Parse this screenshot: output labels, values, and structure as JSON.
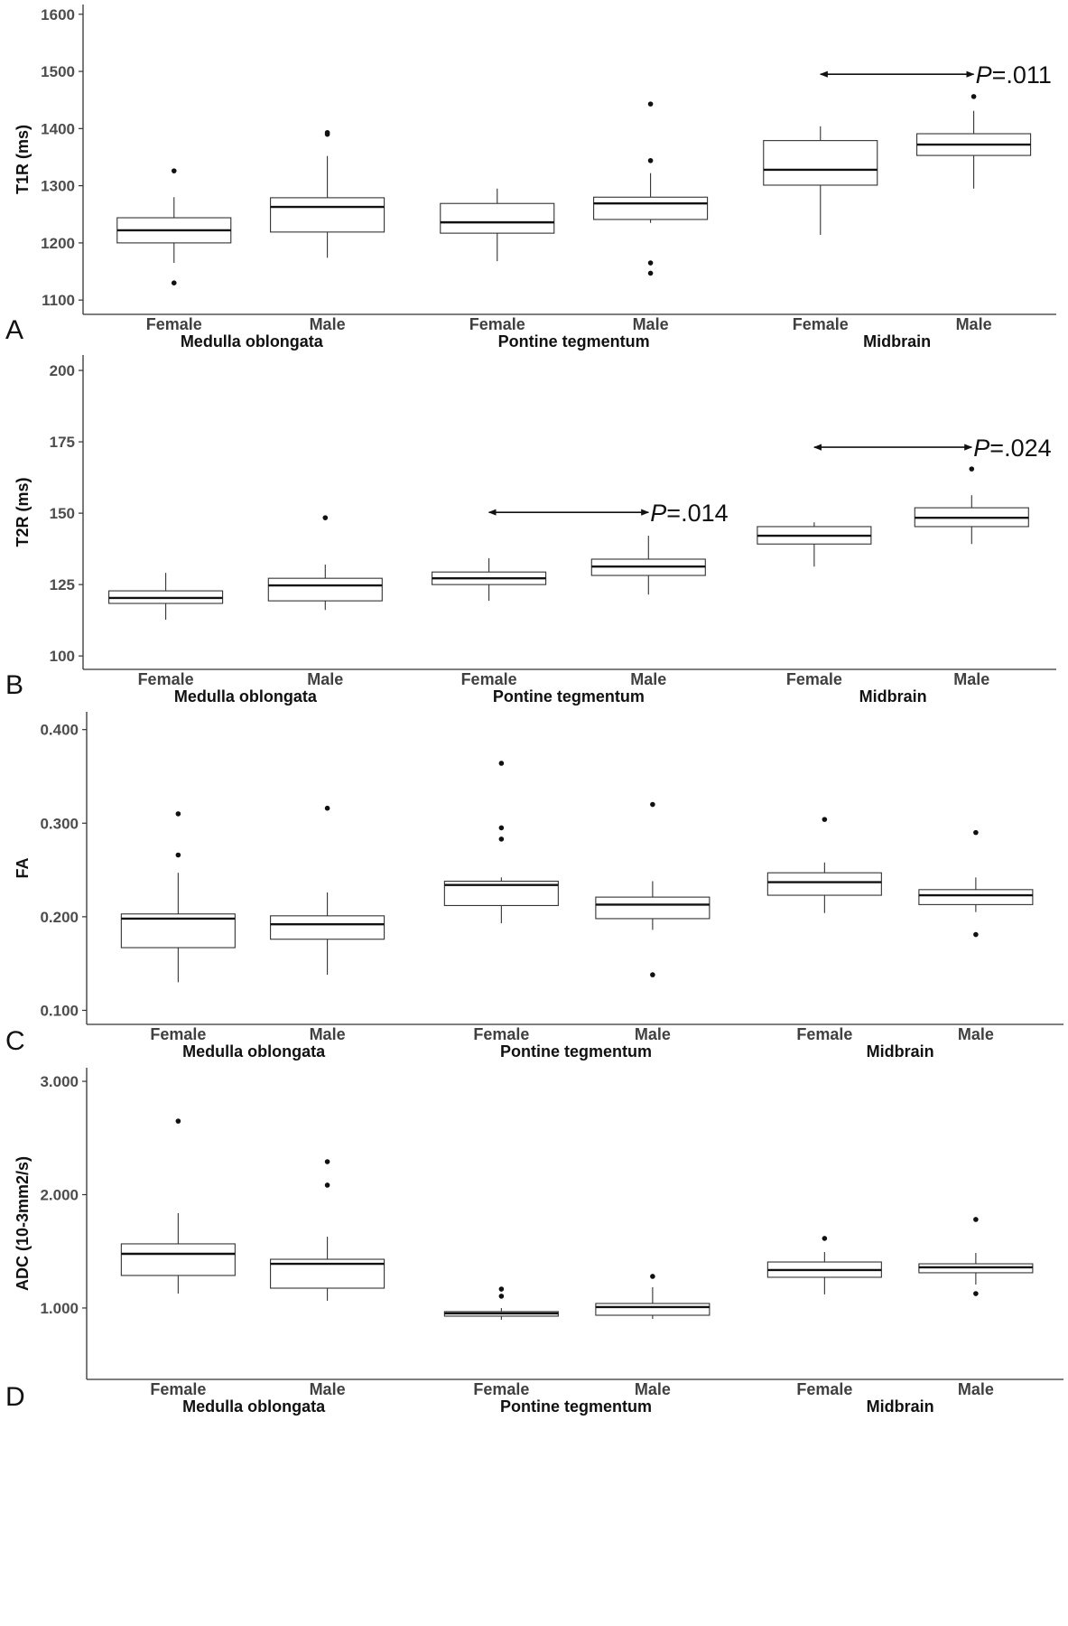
{
  "chart_data": [
    {
      "type": "box",
      "panel_label": "A",
      "ylabel": "T1R (ms)",
      "ylim": [
        1075,
        1617
      ],
      "yticks": [
        1100,
        1200,
        1300,
        1400,
        1500,
        1600
      ],
      "ytick_labels": [
        "1100",
        "1200",
        "1300",
        "1400",
        "1500",
        "1600"
      ],
      "grid": false,
      "categories": [
        "Female",
        "Male",
        "Female",
        "Male",
        "Female",
        "Male"
      ],
      "groups": [
        "Medulla oblongata",
        "Pontine tegmentum",
        "Midbrain"
      ],
      "boxes": [
        {
          "group": "Medulla oblongata",
          "sex": "Female",
          "whisker_low": 1165,
          "q1": 1200,
          "median": 1222,
          "q3": 1244,
          "whisker_high": 1280,
          "outliers": [
            1326,
            1130
          ]
        },
        {
          "group": "Medulla oblongata",
          "sex": "Male",
          "whisker_low": 1174,
          "q1": 1219,
          "median": 1263,
          "q3": 1279,
          "whisker_high": 1352,
          "outliers": [
            1393,
            1390
          ]
        },
        {
          "group": "Pontine tegmentum",
          "sex": "Female",
          "whisker_low": 1168,
          "q1": 1217,
          "median": 1236,
          "q3": 1269,
          "whisker_high": 1295,
          "outliers": []
        },
        {
          "group": "Pontine tegmentum",
          "sex": "Male",
          "whisker_low": 1235,
          "q1": 1241,
          "median": 1269,
          "q3": 1280,
          "whisker_high": 1322,
          "outliers": [
            1443,
            1344,
            1165,
            1147
          ]
        },
        {
          "group": "Midbrain",
          "sex": "Female",
          "whisker_low": 1214,
          "q1": 1301,
          "median": 1328,
          "q3": 1379,
          "whisker_high": 1404,
          "outliers": []
        },
        {
          "group": "Midbrain",
          "sex": "Male",
          "whisker_low": 1295,
          "q1": 1353,
          "median": 1372,
          "q3": 1391,
          "whisker_high": 1431,
          "outliers": [
            1456
          ]
        }
      ],
      "annotations": [
        {
          "from": 4,
          "to": 5,
          "y": 1495,
          "label": "P=.011"
        }
      ]
    },
    {
      "type": "box",
      "panel_label": "B",
      "ylabel": "T2R (ms)",
      "ylim": [
        95.3,
        205.4
      ],
      "yticks": [
        100,
        125,
        150,
        175,
        200
      ],
      "ytick_labels": [
        "100",
        "125",
        "150",
        "175",
        "200"
      ],
      "grid": false,
      "categories": [
        "Female",
        "Male",
        "Female",
        "Male",
        "Female",
        "Male"
      ],
      "groups": [
        "Medulla oblongata",
        "Pontine tegmentum",
        "Midbrain"
      ],
      "boxes": [
        {
          "group": "Medulla oblongata",
          "sex": "Female",
          "whisker_low": 112.7,
          "q1": 118.4,
          "median": 120.3,
          "q3": 122.8,
          "whisker_high": 129.1,
          "outliers": []
        },
        {
          "group": "Medulla oblongata",
          "sex": "Male",
          "whisker_low": 116.1,
          "q1": 119.3,
          "median": 124.7,
          "q3": 127.2,
          "whisker_high": 132.0,
          "outliers": [
            148.4
          ]
        },
        {
          "group": "Pontine tegmentum",
          "sex": "Female",
          "whisker_low": 119.3,
          "q1": 125.0,
          "median": 127.2,
          "q3": 129.4,
          "whisker_high": 134.2,
          "outliers": []
        },
        {
          "group": "Pontine tegmentum",
          "sex": "Male",
          "whisker_low": 121.5,
          "q1": 128.2,
          "median": 131.3,
          "q3": 133.9,
          "whisker_high": 142.1,
          "outliers": []
        },
        {
          "group": "Midbrain",
          "sex": "Female",
          "whisker_low": 131.3,
          "q1": 139.2,
          "median": 142.1,
          "q3": 145.3,
          "whisker_high": 146.8,
          "outliers": []
        },
        {
          "group": "Midbrain",
          "sex": "Male",
          "whisker_low": 139.2,
          "q1": 145.3,
          "median": 148.4,
          "q3": 151.9,
          "whisker_high": 156.3,
          "outliers": [
            165.5
          ]
        }
      ],
      "annotations": [
        {
          "from": 2,
          "to": 3,
          "y": 150.3,
          "label": "P=.014"
        },
        {
          "from": 4,
          "to": 5,
          "y": 173.1,
          "label": "P=.024"
        }
      ]
    },
    {
      "type": "box",
      "panel_label": "C",
      "ylabel": "FA",
      "ylim": [
        0.085,
        0.419
      ],
      "yticks": [
        0.1,
        0.2,
        0.3,
        0.4
      ],
      "ytick_labels": [
        "0.100",
        "0.200",
        "0.300",
        "0.400"
      ],
      "grid": false,
      "categories": [
        "Female",
        "Male",
        "Female",
        "Male",
        "Female",
        "Male"
      ],
      "groups": [
        "Medulla oblongata",
        "Pontine tegmentum",
        "Midbrain"
      ],
      "boxes": [
        {
          "group": "Medulla oblongata",
          "sex": "Female",
          "whisker_low": 0.13,
          "q1": 0.167,
          "median": 0.198,
          "q3": 0.203,
          "whisker_high": 0.247,
          "outliers": [
            0.31,
            0.266
          ]
        },
        {
          "group": "Medulla oblongata",
          "sex": "Male",
          "whisker_low": 0.138,
          "q1": 0.176,
          "median": 0.192,
          "q3": 0.201,
          "whisker_high": 0.226,
          "outliers": [
            0.316
          ]
        },
        {
          "group": "Pontine tegmentum",
          "sex": "Female",
          "whisker_low": 0.193,
          "q1": 0.212,
          "median": 0.234,
          "q3": 0.238,
          "whisker_high": 0.242,
          "outliers": [
            0.364,
            0.295,
            0.283
          ]
        },
        {
          "group": "Pontine tegmentum",
          "sex": "Male",
          "whisker_low": 0.186,
          "q1": 0.198,
          "median": 0.213,
          "q3": 0.221,
          "whisker_high": 0.238,
          "outliers": [
            0.32,
            0.138
          ]
        },
        {
          "group": "Midbrain",
          "sex": "Female",
          "whisker_low": 0.204,
          "q1": 0.223,
          "median": 0.237,
          "q3": 0.247,
          "whisker_high": 0.258,
          "outliers": [
            0.304
          ]
        },
        {
          "group": "Midbrain",
          "sex": "Male",
          "whisker_low": 0.205,
          "q1": 0.213,
          "median": 0.223,
          "q3": 0.229,
          "whisker_high": 0.242,
          "outliers": [
            0.29,
            0.181
          ]
        }
      ],
      "annotations": []
    },
    {
      "type": "box",
      "panel_label": "D",
      "ylabel": "ADC (10-3mm2/s)",
      "ylim": [
        0.37,
        3.12
      ],
      "yticks": [
        1.0,
        2.0,
        3.0
      ],
      "ytick_labels": [
        "1.000",
        "2.000",
        "3.000"
      ],
      "grid": false,
      "categories": [
        "Female",
        "Male",
        "Female",
        "Male",
        "Female",
        "Male"
      ],
      "groups": [
        "Medulla oblongata",
        "Pontine tegmentum",
        "Midbrain"
      ],
      "boxes": [
        {
          "group": "Medulla oblongata",
          "sex": "Female",
          "whisker_low": 1.127,
          "q1": 1.287,
          "median": 1.478,
          "q3": 1.566,
          "whisker_high": 1.837,
          "outliers": [
            2.649
          ]
        },
        {
          "group": "Medulla oblongata",
          "sex": "Male",
          "whisker_low": 1.064,
          "q1": 1.175,
          "median": 1.39,
          "q3": 1.43,
          "whisker_high": 1.629,
          "outliers": [
            2.291,
            2.084
          ]
        },
        {
          "group": "Pontine tegmentum",
          "sex": "Female",
          "whisker_low": 0.896,
          "q1": 0.928,
          "median": 0.952,
          "q3": 0.968,
          "whisker_high": 1.0,
          "outliers": [
            1.167,
            1.104
          ]
        },
        {
          "group": "Pontine tegmentum",
          "sex": "Male",
          "whisker_low": 0.904,
          "q1": 0.936,
          "median": 1.008,
          "q3": 1.04,
          "whisker_high": 1.183,
          "outliers": [
            1.279
          ]
        },
        {
          "group": "Midbrain",
          "sex": "Female",
          "whisker_low": 1.12,
          "q1": 1.271,
          "median": 1.335,
          "q3": 1.406,
          "whisker_high": 1.494,
          "outliers": [
            1.614
          ]
        },
        {
          "group": "Midbrain",
          "sex": "Male",
          "whisker_low": 1.207,
          "q1": 1.311,
          "median": 1.359,
          "q3": 1.39,
          "whisker_high": 1.486,
          "outliers": [
            1.781,
            1.127
          ]
        }
      ],
      "annotations": []
    }
  ]
}
